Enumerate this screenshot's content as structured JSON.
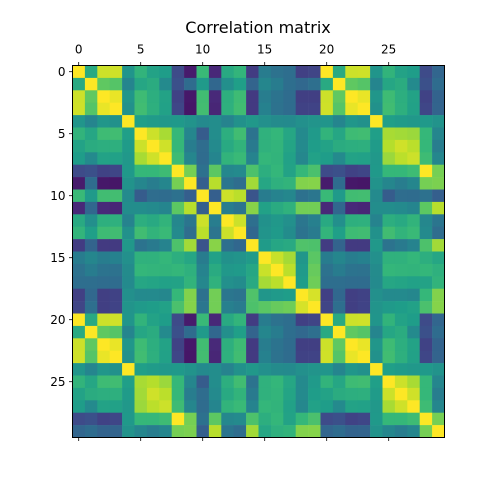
{
  "chart_data": {
    "type": "heatmap",
    "title": "Correlation matrix",
    "xlabel": "",
    "ylabel": "",
    "n": 30,
    "xticks": [
      0,
      5,
      10,
      15,
      20,
      25
    ],
    "yticks": [
      0,
      5,
      10,
      15,
      20,
      25
    ],
    "x_axis_position": "top",
    "grid": false,
    "colormap": "viridis",
    "zlim": [
      -1,
      1
    ],
    "colors": {
      "frame": "#000000",
      "background": "#ffffff"
    },
    "values": [
      [
        1.0,
        0.21,
        0.85,
        0.86,
        0.04,
        0.3,
        0.15,
        0.1,
        -0.55,
        -0.85,
        0.35,
        -0.78,
        0.21,
        0.31,
        -0.65,
        -0.16,
        -0.25,
        -0.28,
        -0.62,
        -0.59,
        1.0,
        0.21,
        0.85,
        0.86,
        0.04,
        0.3,
        0.15,
        0.1,
        -0.55,
        -0.35
      ],
      [
        0.21,
        1.0,
        0.5,
        0.46,
        -0.09,
        0.18,
        0.23,
        -0.05,
        -0.51,
        -0.3,
        0.08,
        -0.34,
        -0.01,
        0.12,
        -0.36,
        -0.08,
        -0.16,
        -0.28,
        -0.33,
        -0.27,
        0.21,
        1.0,
        0.5,
        0.46,
        -0.09,
        0.18,
        0.23,
        -0.05,
        -0.51,
        -0.3
      ],
      [
        0.85,
        0.5,
        1.0,
        0.94,
        0.05,
        0.37,
        0.25,
        0.15,
        -0.61,
        -0.87,
        0.38,
        -0.77,
        0.26,
        0.37,
        -0.66,
        -0.15,
        -0.24,
        -0.3,
        -0.63,
        -0.63,
        0.85,
        0.5,
        1.0,
        0.94,
        0.05,
        0.37,
        0.25,
        0.15,
        -0.61,
        -0.37
      ],
      [
        0.86,
        0.46,
        0.94,
        1.0,
        0.01,
        0.38,
        0.26,
        0.14,
        -0.58,
        -0.88,
        0.39,
        -0.79,
        0.27,
        0.38,
        -0.66,
        -0.12,
        -0.25,
        -0.3,
        -0.61,
        -0.6,
        0.86,
        0.46,
        0.94,
        1.0,
        0.01,
        0.38,
        0.26,
        0.14,
        -0.58,
        -0.36
      ],
      [
        0.04,
        -0.09,
        0.05,
        0.01,
        1.0,
        0.12,
        0.09,
        0.06,
        0.07,
        0.02,
        -0.05,
        -0.02,
        -0.1,
        0.01,
        0.06,
        0.0,
        -0.04,
        -0.05,
        0.0,
        0.03,
        0.04,
        -0.09,
        0.05,
        0.01,
        1.0,
        0.12,
        0.09,
        0.06,
        0.07,
        0.02
      ],
      [
        0.3,
        0.18,
        0.37,
        0.38,
        0.12,
        1.0,
        0.85,
        0.74,
        0.33,
        -0.08,
        -0.42,
        -0.02,
        0.25,
        0.38,
        -0.24,
        0.28,
        0.32,
        0.18,
        -0.05,
        0.08,
        0.3,
        0.18,
        0.37,
        0.38,
        0.12,
        0.74,
        0.72,
        0.7,
        0.33,
        -0.08
      ],
      [
        0.15,
        0.23,
        0.25,
        0.26,
        0.09,
        0.85,
        1.0,
        0.86,
        0.33,
        -0.15,
        -0.29,
        -0.05,
        0.21,
        0.3,
        -0.18,
        0.28,
        0.31,
        0.16,
        -0.05,
        0.1,
        0.15,
        0.23,
        0.25,
        0.26,
        0.09,
        0.78,
        0.86,
        0.8,
        0.33,
        -0.15
      ],
      [
        0.1,
        -0.05,
        0.15,
        0.14,
        0.06,
        0.74,
        0.86,
        1.0,
        0.37,
        -0.08,
        -0.3,
        -0.09,
        0.3,
        0.35,
        -0.1,
        0.32,
        0.3,
        0.14,
        -0.07,
        0.14,
        0.1,
        -0.05,
        0.15,
        0.14,
        0.06,
        0.7,
        0.8,
        0.85,
        0.37,
        -0.08
      ],
      [
        -0.55,
        -0.51,
        -0.61,
        -0.58,
        0.07,
        0.33,
        0.33,
        0.37,
        1.0,
        0.58,
        -0.26,
        0.49,
        -0.07,
        -0.05,
        0.43,
        0.25,
        0.32,
        0.15,
        0.33,
        0.42,
        -0.55,
        -0.51,
        -0.61,
        -0.58,
        0.07,
        0.33,
        0.33,
        0.37,
        1.0,
        0.58
      ],
      [
        -0.85,
        -0.3,
        -0.87,
        -0.88,
        0.02,
        -0.08,
        -0.15,
        -0.08,
        0.58,
        1.0,
        -0.4,
        0.79,
        -0.22,
        -0.29,
        0.72,
        0.18,
        0.27,
        0.3,
        0.62,
        0.63,
        -0.85,
        -0.3,
        -0.87,
        -0.88,
        0.02,
        -0.08,
        -0.15,
        -0.08,
        0.58,
        0.6
      ],
      [
        0.35,
        0.08,
        0.38,
        0.39,
        -0.05,
        -0.42,
        -0.29,
        -0.3,
        -0.26,
        -0.4,
        1.0,
        -0.4,
        0.85,
        0.8,
        -0.48,
        -0.16,
        -0.1,
        -0.07,
        -0.26,
        -0.21,
        0.35,
        0.08,
        0.38,
        0.39,
        -0.05,
        -0.42,
        -0.29,
        -0.3,
        -0.26,
        -0.4
      ],
      [
        -0.78,
        -0.34,
        -0.77,
        -0.79,
        -0.02,
        -0.02,
        -0.05,
        -0.09,
        0.49,
        0.79,
        -0.4,
        1.0,
        -0.15,
        -0.23,
        0.64,
        0.14,
        0.22,
        0.28,
        0.57,
        0.57,
        -0.78,
        -0.34,
        -0.77,
        -0.79,
        -0.02,
        -0.02,
        -0.05,
        -0.09,
        0.49,
        0.79
      ],
      [
        0.21,
        -0.01,
        0.26,
        0.27,
        -0.1,
        0.25,
        0.21,
        0.3,
        -0.07,
        -0.22,
        0.85,
        -0.15,
        1.0,
        0.85,
        -0.27,
        0.01,
        0.06,
        0.0,
        -0.21,
        -0.13,
        0.21,
        -0.01,
        0.26,
        0.27,
        -0.1,
        0.25,
        0.21,
        0.3,
        -0.07,
        -0.22
      ],
      [
        0.31,
        0.12,
        0.37,
        0.38,
        0.01,
        0.38,
        0.3,
        0.35,
        -0.05,
        -0.29,
        0.8,
        -0.23,
        0.85,
        1.0,
        -0.34,
        0.03,
        0.08,
        -0.03,
        -0.24,
        -0.17,
        0.31,
        0.12,
        0.37,
        0.38,
        0.01,
        0.38,
        0.3,
        0.35,
        -0.05,
        -0.29
      ],
      [
        -0.65,
        -0.36,
        -0.66,
        -0.66,
        0.06,
        -0.24,
        -0.18,
        -0.1,
        0.43,
        0.72,
        -0.48,
        0.64,
        -0.27,
        -0.34,
        1.0,
        0.09,
        0.18,
        0.21,
        0.44,
        0.43,
        -0.65,
        -0.36,
        -0.66,
        -0.66,
        0.06,
        -0.24,
        -0.18,
        -0.1,
        0.43,
        0.72
      ],
      [
        -0.16,
        -0.08,
        -0.15,
        -0.12,
        0.0,
        0.28,
        0.28,
        0.32,
        0.25,
        0.18,
        -0.16,
        0.14,
        0.01,
        0.03,
        0.09,
        1.0,
        0.84,
        0.73,
        0.05,
        0.48,
        -0.16,
        -0.08,
        -0.15,
        -0.12,
        0.0,
        0.28,
        0.28,
        0.32,
        0.25,
        0.18
      ],
      [
        -0.25,
        -0.16,
        -0.24,
        -0.25,
        -0.04,
        0.32,
        0.31,
        0.3,
        0.32,
        0.27,
        -0.1,
        0.22,
        0.06,
        0.08,
        0.18,
        0.84,
        1.0,
        0.8,
        0.08,
        0.53,
        -0.25,
        -0.16,
        -0.24,
        -0.25,
        -0.04,
        0.32,
        0.31,
        0.3,
        0.32,
        0.27
      ],
      [
        -0.28,
        -0.28,
        -0.3,
        -0.3,
        -0.05,
        0.18,
        0.16,
        0.14,
        0.15,
        0.3,
        -0.07,
        0.28,
        0.0,
        -0.03,
        0.21,
        0.73,
        0.8,
        1.0,
        0.1,
        0.56,
        -0.28,
        -0.28,
        -0.3,
        -0.3,
        -0.05,
        0.18,
        0.16,
        0.14,
        0.15,
        0.3
      ],
      [
        -0.62,
        -0.33,
        -0.63,
        -0.61,
        0.0,
        -0.05,
        -0.05,
        -0.07,
        0.33,
        0.62,
        -0.26,
        0.57,
        -0.21,
        -0.24,
        0.44,
        0.05,
        0.08,
        0.1,
        1.0,
        0.88,
        -0.62,
        -0.33,
        -0.63,
        -0.61,
        0.0,
        -0.05,
        -0.05,
        -0.07,
        0.33,
        0.62
      ],
      [
        -0.59,
        -0.27,
        -0.63,
        -0.6,
        0.03,
        0.08,
        0.1,
        0.14,
        0.42,
        0.63,
        -0.21,
        0.57,
        -0.13,
        -0.17,
        0.43,
        0.48,
        0.53,
        0.56,
        0.88,
        1.0,
        -0.59,
        -0.27,
        -0.63,
        -0.6,
        0.03,
        0.08,
        0.1,
        0.14,
        0.42,
        0.63
      ],
      [
        1.0,
        0.21,
        0.85,
        0.86,
        0.04,
        0.3,
        0.15,
        0.1,
        -0.55,
        -0.85,
        0.35,
        -0.78,
        0.21,
        0.31,
        -0.65,
        -0.16,
        -0.25,
        -0.28,
        -0.62,
        -0.59,
        1.0,
        0.21,
        0.85,
        0.86,
        0.04,
        0.3,
        0.15,
        0.1,
        -0.55,
        -0.35
      ],
      [
        0.21,
        1.0,
        0.5,
        0.46,
        -0.09,
        0.18,
        0.23,
        -0.05,
        -0.51,
        -0.3,
        0.08,
        -0.34,
        -0.01,
        0.12,
        -0.36,
        -0.08,
        -0.16,
        -0.28,
        -0.33,
        -0.27,
        0.21,
        1.0,
        0.5,
        0.46,
        -0.09,
        0.18,
        0.23,
        -0.05,
        -0.51,
        -0.3
      ],
      [
        0.85,
        0.5,
        1.0,
        0.94,
        0.05,
        0.37,
        0.25,
        0.15,
        -0.61,
        -0.87,
        0.38,
        -0.77,
        0.26,
        0.37,
        -0.66,
        -0.15,
        -0.24,
        -0.3,
        -0.63,
        -0.63,
        0.85,
        0.5,
        1.0,
        0.94,
        0.05,
        0.37,
        0.25,
        0.15,
        -0.61,
        -0.37
      ],
      [
        0.86,
        0.46,
        0.94,
        1.0,
        0.01,
        0.38,
        0.26,
        0.14,
        -0.58,
        -0.88,
        0.39,
        -0.79,
        0.27,
        0.38,
        -0.66,
        -0.12,
        -0.25,
        -0.3,
        -0.61,
        -0.6,
        0.86,
        0.46,
        0.94,
        1.0,
        0.01,
        0.38,
        0.26,
        0.14,
        -0.58,
        -0.36
      ],
      [
        0.04,
        -0.09,
        0.05,
        0.01,
        1.0,
        0.12,
        0.09,
        0.06,
        0.07,
        0.02,
        -0.05,
        -0.02,
        -0.1,
        0.01,
        0.06,
        0.0,
        -0.04,
        -0.05,
        0.0,
        0.03,
        0.04,
        -0.09,
        0.05,
        0.01,
        1.0,
        0.12,
        0.09,
        0.06,
        0.07,
        0.02
      ],
      [
        0.3,
        0.18,
        0.37,
        0.38,
        0.12,
        0.74,
        0.78,
        0.7,
        0.33,
        -0.08,
        -0.42,
        -0.02,
        0.25,
        0.38,
        -0.24,
        0.28,
        0.32,
        0.18,
        -0.05,
        0.08,
        0.3,
        0.18,
        0.37,
        0.38,
        0.12,
        1.0,
        0.85,
        0.74,
        0.33,
        -0.08
      ],
      [
        0.15,
        0.23,
        0.25,
        0.26,
        0.09,
        0.72,
        0.86,
        0.8,
        0.33,
        -0.15,
        -0.29,
        -0.05,
        0.21,
        0.3,
        -0.18,
        0.28,
        0.31,
        0.16,
        -0.05,
        0.1,
        0.15,
        0.23,
        0.25,
        0.26,
        0.09,
        0.85,
        1.0,
        0.86,
        0.33,
        -0.15
      ],
      [
        0.1,
        -0.05,
        0.15,
        0.14,
        0.06,
        0.7,
        0.8,
        0.85,
        0.37,
        -0.08,
        -0.3,
        -0.09,
        0.3,
        0.35,
        -0.1,
        0.32,
        0.3,
        0.14,
        -0.07,
        0.14,
        0.1,
        -0.05,
        0.15,
        0.14,
        0.06,
        0.74,
        0.86,
        1.0,
        0.37,
        -0.08
      ],
      [
        -0.55,
        -0.51,
        -0.61,
        -0.58,
        0.07,
        0.33,
        0.33,
        0.37,
        1.0,
        0.58,
        -0.26,
        0.49,
        -0.07,
        -0.05,
        0.43,
        0.25,
        0.32,
        0.15,
        0.33,
        0.42,
        -0.55,
        -0.51,
        -0.61,
        -0.58,
        0.07,
        0.33,
        0.33,
        0.37,
        1.0,
        0.58
      ],
      [
        -0.35,
        -0.3,
        -0.37,
        -0.36,
        0.02,
        -0.08,
        -0.15,
        -0.08,
        0.58,
        0.6,
        -0.4,
        0.79,
        -0.22,
        -0.29,
        0.72,
        0.18,
        0.27,
        0.3,
        0.62,
        0.63,
        -0.35,
        -0.3,
        -0.37,
        -0.36,
        0.02,
        -0.08,
        -0.15,
        -0.08,
        0.58,
        1.0
      ]
    ]
  }
}
